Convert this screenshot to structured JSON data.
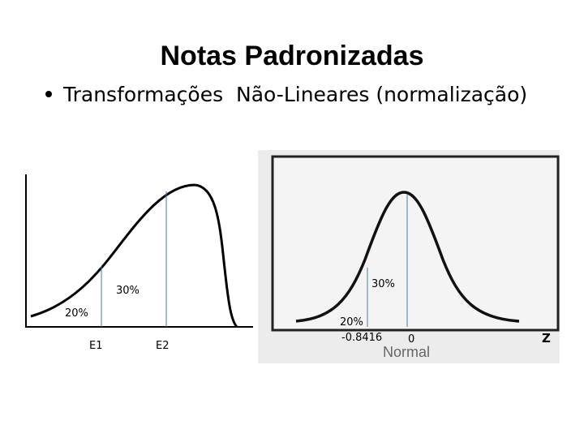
{
  "header": {
    "title": "Notas Padronizadas"
  },
  "bullets": [
    "Transformações  Não-Lineares (normalização)"
  ],
  "left_diagram": {
    "area_upper": "30%",
    "area_lower": "20%",
    "point_1": "E1",
    "point_2": "E2"
  },
  "right_diagram": {
    "area_upper": "30%",
    "area_lower": "20%",
    "cut_point": "-0.8416",
    "mean_point": "0",
    "axis_label": "Z",
    "caption": "Normal"
  }
}
